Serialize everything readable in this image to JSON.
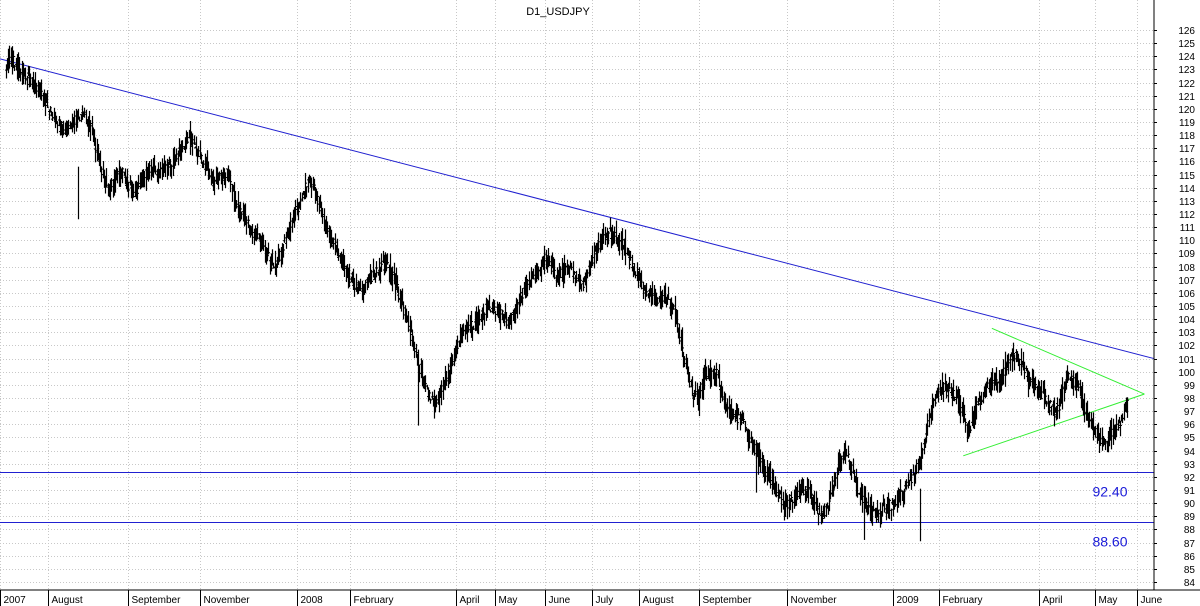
{
  "chart_data": {
    "type": "candlestick",
    "title": "D1_USDJPY",
    "ylim": [
      84,
      126
    ],
    "y_ticks": [
      84,
      85,
      86,
      87,
      88,
      89,
      90,
      91,
      92,
      93,
      94,
      95,
      96,
      97,
      98,
      99,
      100,
      101,
      102,
      103,
      104,
      105,
      106,
      107,
      108,
      109,
      110,
      111,
      112,
      113,
      114,
      115,
      116,
      117,
      118,
      119,
      120,
      121,
      122,
      123,
      124,
      125,
      126
    ],
    "grid": true,
    "x_labels": [
      "2007",
      "August",
      "September",
      "November",
      "2008",
      "February",
      "April",
      "May",
      "June",
      "July",
      "August",
      "September",
      "November",
      "2009",
      "February",
      "April",
      "May",
      "June"
    ],
    "series": [
      {
        "values": [
          123.4,
          123.8,
          123.2,
          122.6,
          122.2,
          121.6,
          120.9,
          120.1,
          119.2,
          118.6,
          118.5,
          118.8,
          119.5,
          119.3,
          118.6,
          116.5,
          114.8,
          113.8,
          114.6,
          115.2,
          114.2,
          113.6,
          114.3,
          115.1,
          115.7,
          115.0,
          115.4,
          115.8,
          116.5,
          117.2,
          117.9,
          117.1,
          116.1,
          115.4,
          114.4,
          114.9,
          115.0,
          113.8,
          112.5,
          111.7,
          110.9,
          110.3,
          109.6,
          108.7,
          108.0,
          109.0,
          110.4,
          111.7,
          112.8,
          114.1,
          114.4,
          113.1,
          111.2,
          110.2,
          109.3,
          108.2,
          107.4,
          106.6,
          106.3,
          106.8,
          107.3,
          107.9,
          108.3,
          107.4,
          106.2,
          104.7,
          103.1,
          101.4,
          99.5,
          98.1,
          97.4,
          98.3,
          99.6,
          101.0,
          102.3,
          103.1,
          103.4,
          104.0,
          104.6,
          105.1,
          104.7,
          104.3,
          103.9,
          104.5,
          105.6,
          106.4,
          107.1,
          107.8,
          108.5,
          108.0,
          107.2,
          107.6,
          107.9,
          107.1,
          106.6,
          107.8,
          108.9,
          109.9,
          110.6,
          110.4,
          109.9,
          109.7,
          108.3,
          107.5,
          106.4,
          105.7,
          105.5,
          105.6,
          105.4,
          104.6,
          102.6,
          100.1,
          98.4,
          97.9,
          99.9,
          99.6,
          99.8,
          97.7,
          97.1,
          96.6,
          96.5,
          95.4,
          94.2,
          93.2,
          92.5,
          91.6,
          90.7,
          89.8,
          90.2,
          90.7,
          91.1,
          90.8,
          89.8,
          89.2,
          89.6,
          91.4,
          93.4,
          93.8,
          92.6,
          91.0,
          90.2,
          89.6,
          89.0,
          89.6,
          89.8,
          90.0,
          90.6,
          91.2,
          92.1,
          93.2,
          94.9,
          97.2,
          98.4,
          98.9,
          98.4,
          98.0,
          97.1,
          95.4,
          96.9,
          98.0,
          98.6,
          99.1,
          99.6,
          100.3,
          101.2,
          100.9,
          100.1,
          99.1,
          98.8,
          98.3,
          97.6,
          96.9,
          97.7,
          99.6,
          99.4,
          98.7,
          97.1,
          95.9,
          95.1,
          94.8,
          95.0,
          95.6,
          96.5,
          97.4
        ]
      }
    ],
    "trendlines": [
      {
        "color": "#2020d0",
        "points": [
          [
            0,
            123.8
          ],
          [
            1,
            101.0
          ]
        ]
      },
      {
        "color": "#33ee33",
        "points": [
          [
            0.8595,
            103.3
          ],
          [
            0.9917,
            98.3
          ]
        ]
      },
      {
        "color": "#33ee33",
        "points": [
          [
            0.8347,
            93.6
          ],
          [
            0.9917,
            98.3
          ]
        ]
      }
    ],
    "levels": [
      {
        "value": 92.4,
        "label": "92.40",
        "color": "#2020d0"
      },
      {
        "value": 88.6,
        "label": "88.60",
        "color": "#2020d0"
      }
    ]
  }
}
